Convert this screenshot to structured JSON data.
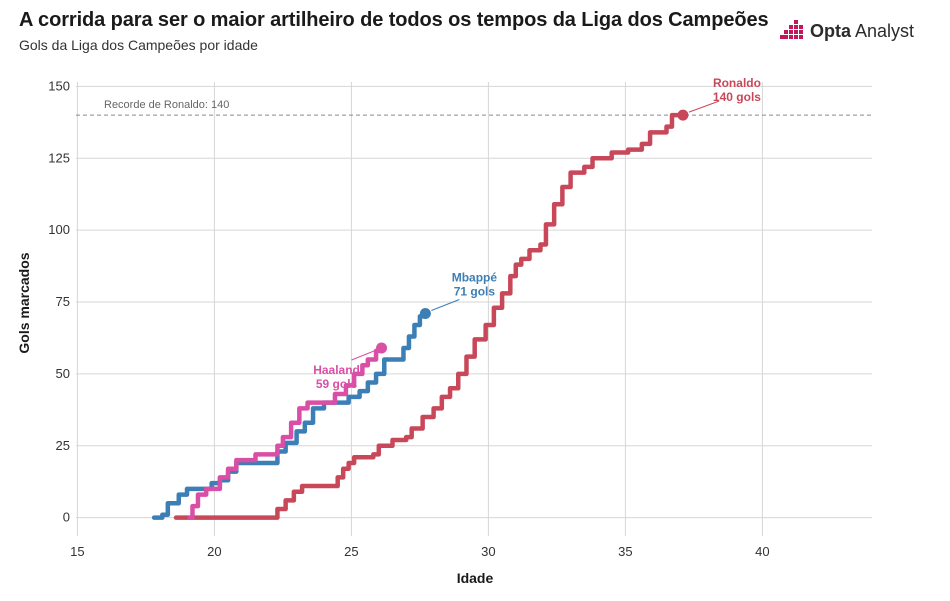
{
  "header": {
    "title": "A corrida para ser o maior artilheiro de todos os tempos da Liga dos Campeões",
    "subtitle": "Gols da Liga dos Campeões por idade",
    "logo_bold": "Opta",
    "logo_rest": " Analyst"
  },
  "colors": {
    "ronaldo": "#c8485a",
    "mbappe": "#3b7fb6",
    "haaland": "#d94fa6",
    "brand": "#c2185b"
  },
  "chart_data": {
    "type": "line",
    "title": "A corrida para ser o maior artilheiro de todos os tempos da Liga dos Campeões",
    "subtitle": "Gols da Liga dos Campeões por idade",
    "xlabel": "Idade",
    "ylabel": "Gols marcados",
    "xlim": [
      14,
      44
    ],
    "ylim": [
      -5,
      155
    ],
    "xticks": [
      "15",
      "20",
      "25",
      "30",
      "35",
      "40"
    ],
    "yticks": [
      "0",
      "25",
      "50",
      "75",
      "100",
      "125",
      "150"
    ],
    "grid": true,
    "reference_line": {
      "y": 140,
      "label": "Recorde de Ronaldo: 140"
    },
    "series": [
      {
        "name": "Ronaldo",
        "end_label_line1": "Ronaldo",
        "end_label_line2": "140 gols",
        "step": true,
        "points": [
          [
            18.6,
            0
          ],
          [
            22.1,
            0
          ],
          [
            22.3,
            3
          ],
          [
            22.6,
            6
          ],
          [
            22.9,
            9
          ],
          [
            23.2,
            11
          ],
          [
            24.3,
            11
          ],
          [
            24.5,
            14
          ],
          [
            24.7,
            17
          ],
          [
            24.9,
            19
          ],
          [
            25.1,
            21
          ],
          [
            25.8,
            22
          ],
          [
            26.0,
            25
          ],
          [
            26.5,
            27
          ],
          [
            27.0,
            28
          ],
          [
            27.2,
            31
          ],
          [
            27.6,
            35
          ],
          [
            28.0,
            38
          ],
          [
            28.3,
            42
          ],
          [
            28.6,
            45
          ],
          [
            28.9,
            50
          ],
          [
            29.2,
            56
          ],
          [
            29.5,
            62
          ],
          [
            29.9,
            67
          ],
          [
            30.2,
            73
          ],
          [
            30.5,
            78
          ],
          [
            30.8,
            84
          ],
          [
            31.0,
            88
          ],
          [
            31.2,
            90
          ],
          [
            31.5,
            93
          ],
          [
            31.9,
            95
          ],
          [
            32.1,
            102
          ],
          [
            32.4,
            109
          ],
          [
            32.7,
            115
          ],
          [
            33.0,
            120
          ],
          [
            33.5,
            122
          ],
          [
            33.8,
            125
          ],
          [
            34.5,
            127
          ],
          [
            35.1,
            128
          ],
          [
            35.6,
            130
          ],
          [
            35.9,
            134
          ],
          [
            36.5,
            136
          ],
          [
            36.7,
            140
          ],
          [
            37.1,
            140
          ]
        ],
        "end": [
          37.1,
          140
        ]
      },
      {
        "name": "Mbappé",
        "end_label_line1": "Mbappé",
        "end_label_line2": "71 gols",
        "step": true,
        "points": [
          [
            17.8,
            0
          ],
          [
            18.1,
            1
          ],
          [
            18.3,
            5
          ],
          [
            18.7,
            8
          ],
          [
            19.0,
            10
          ],
          [
            19.9,
            12
          ],
          [
            20.2,
            13
          ],
          [
            20.5,
            16
          ],
          [
            20.8,
            19
          ],
          [
            22.3,
            23
          ],
          [
            22.6,
            26
          ],
          [
            23.0,
            30
          ],
          [
            23.3,
            33
          ],
          [
            23.6,
            38
          ],
          [
            24.0,
            40
          ],
          [
            24.9,
            42
          ],
          [
            25.3,
            44
          ],
          [
            25.6,
            47
          ],
          [
            25.9,
            50
          ],
          [
            26.2,
            55
          ],
          [
            26.9,
            59
          ],
          [
            27.1,
            63
          ],
          [
            27.3,
            67
          ],
          [
            27.5,
            70
          ],
          [
            27.7,
            71
          ]
        ],
        "end": [
          27.7,
          71
        ]
      },
      {
        "name": "Haaland",
        "end_label_line1": "Haaland",
        "end_label_line2": "59 gols",
        "step": true,
        "points": [
          [
            19.1,
            0
          ],
          [
            19.2,
            4
          ],
          [
            19.4,
            8
          ],
          [
            19.7,
            10
          ],
          [
            20.2,
            14
          ],
          [
            20.5,
            17
          ],
          [
            20.8,
            20
          ],
          [
            21.5,
            22
          ],
          [
            22.3,
            25
          ],
          [
            22.5,
            28
          ],
          [
            22.8,
            33
          ],
          [
            23.1,
            38
          ],
          [
            23.4,
            40
          ],
          [
            24.4,
            43
          ],
          [
            24.8,
            46
          ],
          [
            25.1,
            50
          ],
          [
            25.4,
            53
          ],
          [
            25.6,
            55
          ],
          [
            25.9,
            58
          ],
          [
            26.1,
            59
          ]
        ],
        "end": [
          26.1,
          59
        ]
      }
    ]
  }
}
